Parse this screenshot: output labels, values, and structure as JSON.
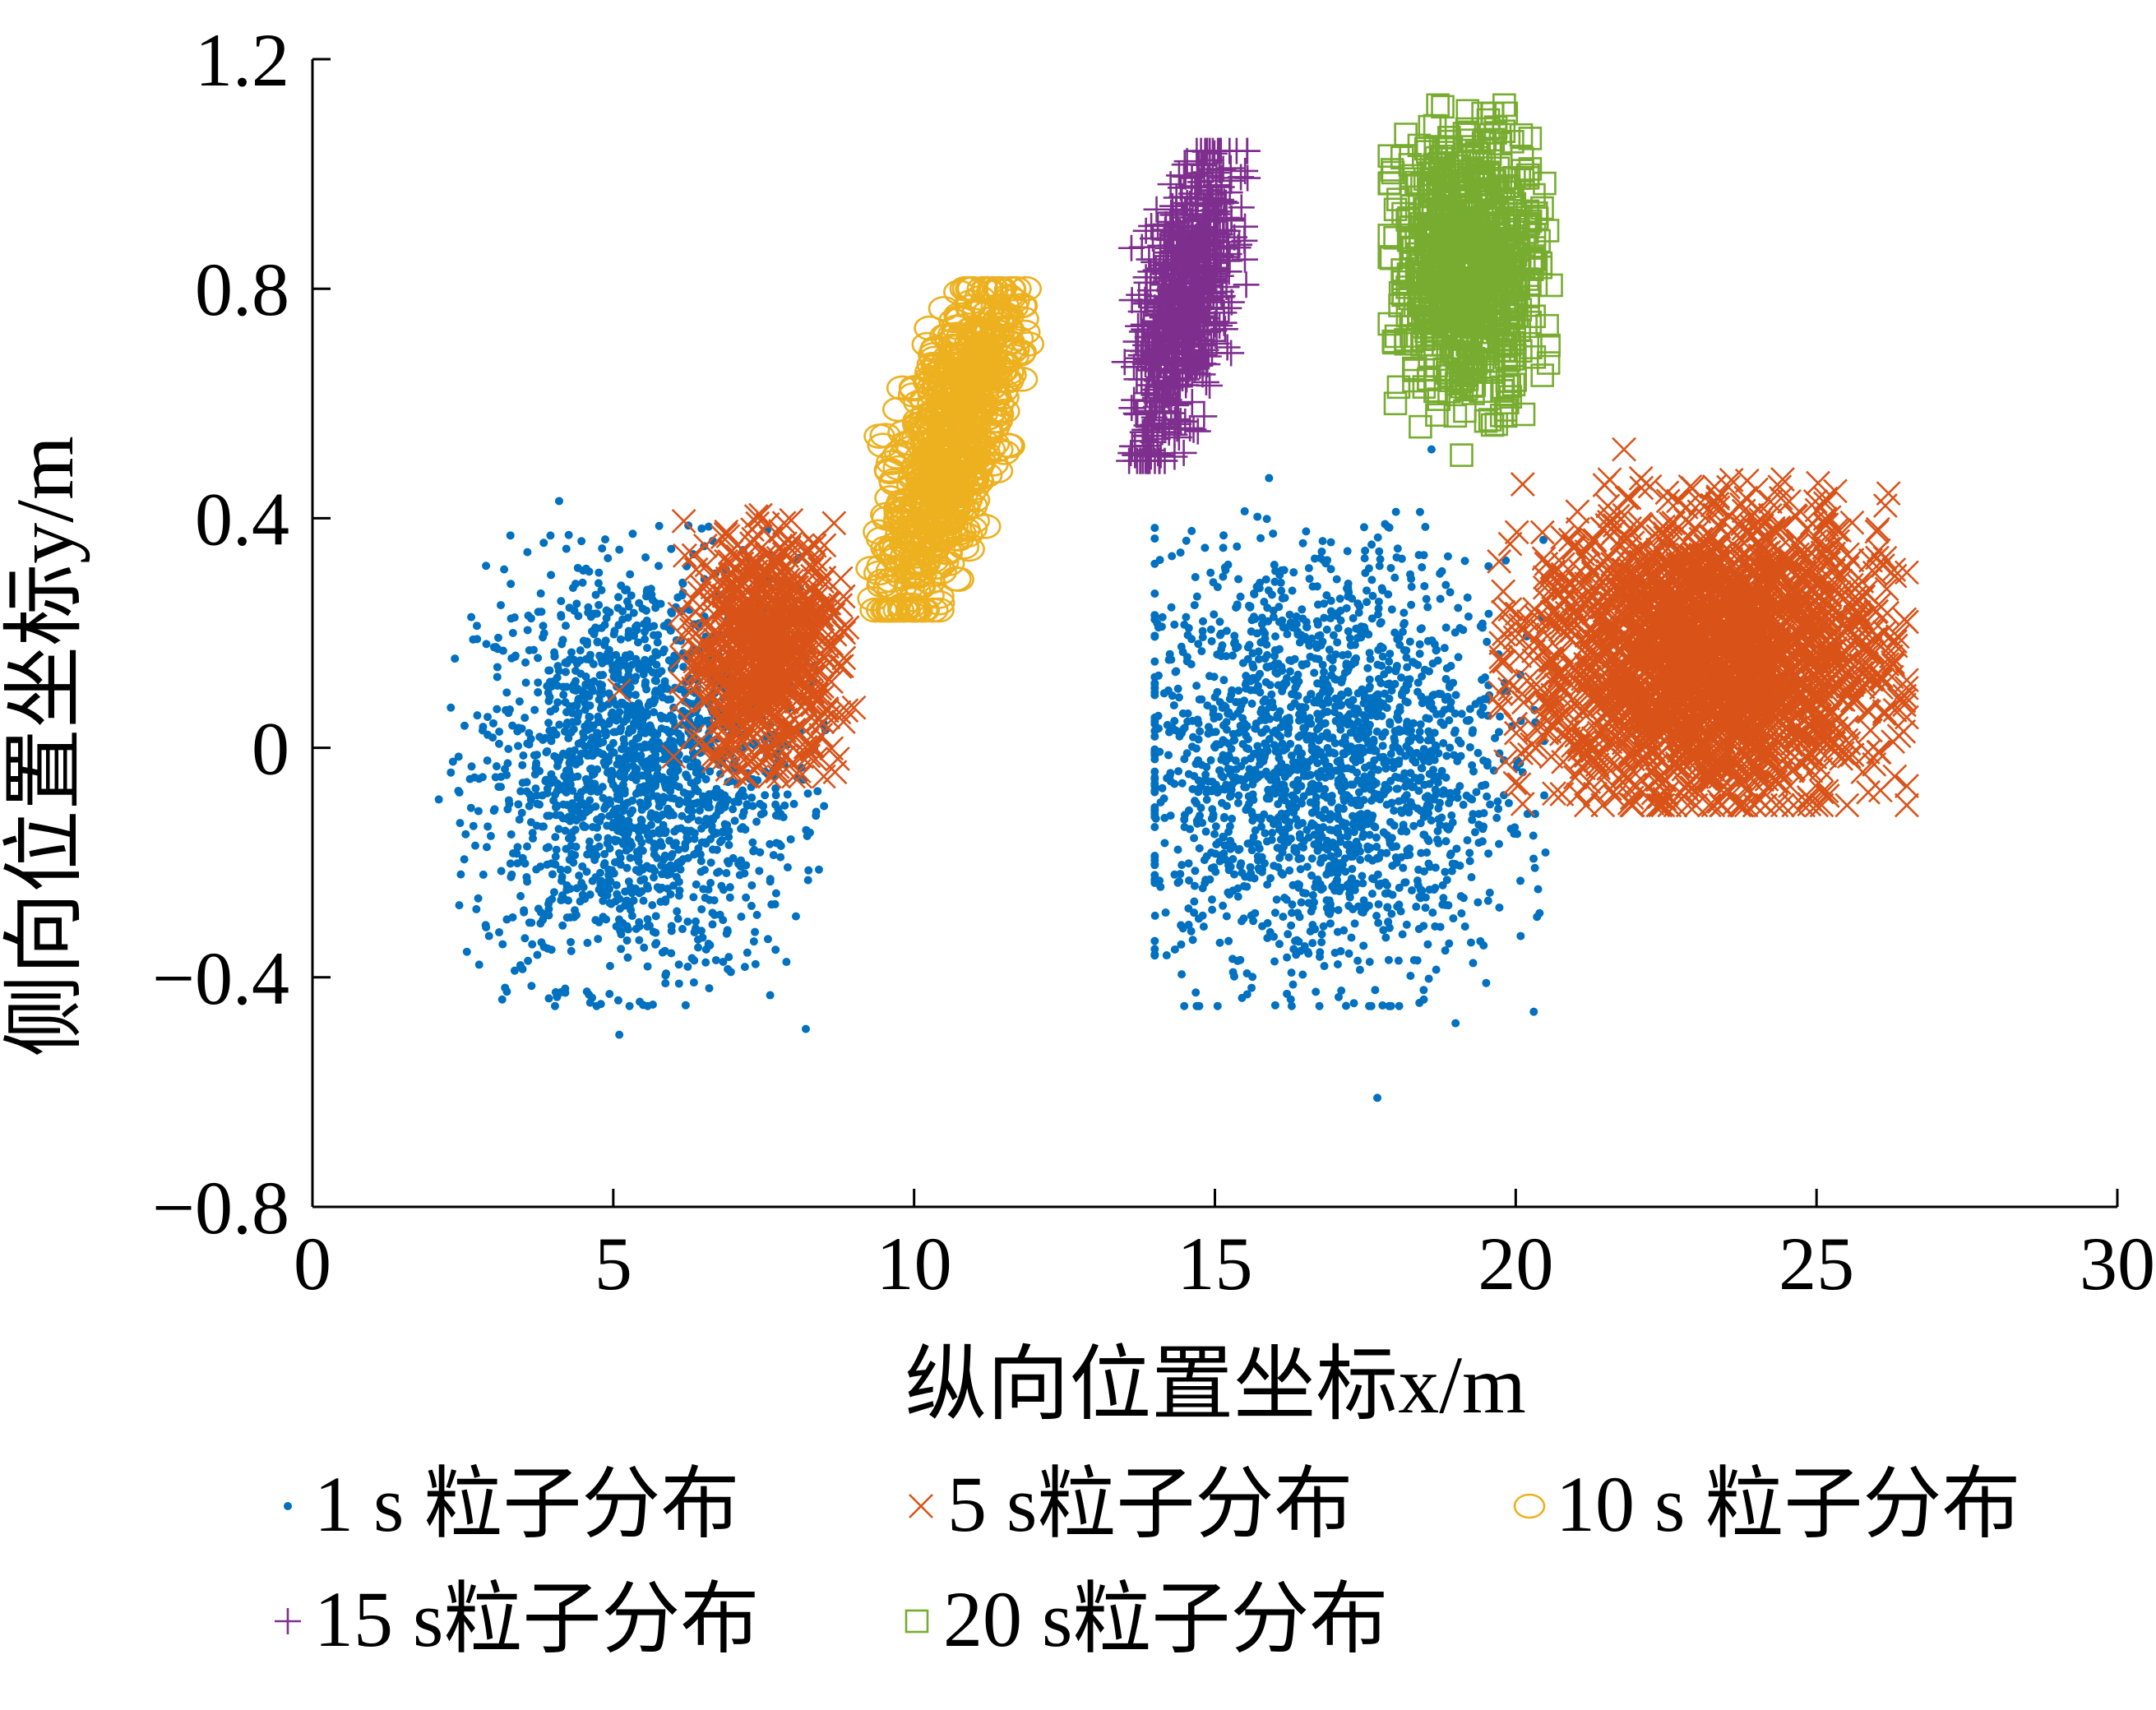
{
  "chart_data": {
    "type": "scatter",
    "xlabel": "纵向位置坐标x/m",
    "ylabel": "侧向位置坐标y/m",
    "xlim": [
      0,
      30
    ],
    "ylim": [
      -0.8,
      1.2
    ],
    "xticks": [
      "0",
      "5",
      "10",
      "15",
      "20",
      "25",
      "30"
    ],
    "yticks": [
      "1.2",
      "0.8",
      "0.4",
      "0",
      "−0.4",
      "−0.8"
    ],
    "xtick_values": [
      0,
      5,
      10,
      15,
      20,
      25,
      30
    ],
    "ytick_values": [
      1.2,
      0.8,
      0.4,
      0,
      -0.4,
      -0.8
    ],
    "grid": false,
    "legend_position": "bottom",
    "series": [
      {
        "name": "1 s 粒子分布",
        "marker": "dot",
        "color": "#0070C0",
        "clusters": [
          {
            "center": [
              5.4,
              -0.04
            ],
            "x_range": [
              2.3,
              8.6
            ],
            "y_range": [
              -0.45,
              0.42
            ],
            "count": 1800
          },
          {
            "center": [
              16.8,
              -0.03
            ],
            "x_range": [
              14.0,
              21.4
            ],
            "y_range": [
              -0.45,
              0.44
            ],
            "count": 2000
          }
        ],
        "outliers": [
          [
            5.1,
            -0.5
          ],
          [
            8.2,
            -0.49
          ],
          [
            17.7,
            -0.61
          ],
          [
            2.1,
            -0.09
          ],
          [
            2.3,
            0.07
          ],
          [
            4.1,
            0.43
          ],
          [
            20.3,
            -0.46
          ],
          [
            19.0,
            -0.48
          ],
          [
            15.9,
            0.47
          ],
          [
            18.6,
            0.52
          ]
        ]
      },
      {
        "name": "5 s粒子分布",
        "marker": "x",
        "color": "#D95319",
        "clusters": [
          {
            "center": [
              7.5,
              0.17
            ],
            "x_range": [
              6.0,
              9.0
            ],
            "y_range": [
              -0.05,
              0.45
            ],
            "count": 700
          },
          {
            "center": [
              23.2,
              0.16
            ],
            "x_range": [
              19.5,
              26.5
            ],
            "y_range": [
              -0.1,
              0.52
            ],
            "count": 2200
          }
        ],
        "outliers": [
          [
            5.1,
            0.1
          ],
          [
            7.2,
            -0.05
          ],
          [
            26.3,
            -0.05
          ],
          [
            25.0,
            -0.1
          ],
          [
            21.8,
            0.52
          ],
          [
            24.0,
            0.45
          ],
          [
            6.5,
            0.0
          ],
          [
            9.0,
            0.07
          ]
        ]
      },
      {
        "name": "10 s 粒子分布",
        "marker": "circle",
        "color": "#EDB120",
        "clusters": [
          {
            "center": [
              10.6,
              0.53
            ],
            "x_range": [
              9.2,
              11.9
            ],
            "y_range": [
              0.24,
              0.8
            ],
            "count": 700,
            "tilt": 0.2
          }
        ],
        "outliers": [
          [
            10.0,
            0.24
          ],
          [
            10.1,
            0.28
          ]
        ]
      },
      {
        "name": "15 s粒子分布",
        "marker": "plus",
        "color": "#7E2F8E",
        "clusters": [
          {
            "center": [
              14.5,
              0.78
            ],
            "x_range": [
              13.5,
              15.6
            ],
            "y_range": [
              0.5,
              1.04
            ],
            "count": 700,
            "tilt": 0.18
          }
        ],
        "outliers": [
          [
            13.8,
            0.55
          ],
          [
            14.1,
            0.51
          ]
        ]
      },
      {
        "name": "20 s粒子分布",
        "marker": "square",
        "color": "#77AC30",
        "clusters": [
          {
            "center": [
              19.2,
              0.84
            ],
            "x_range": [
              17.9,
              20.7
            ],
            "y_range": [
              0.55,
              1.12
            ],
            "count": 800
          }
        ],
        "outliers": [
          [
            19.1,
            0.51
          ],
          [
            18.0,
            0.6
          ],
          [
            19.2,
            1.11
          ],
          [
            20.3,
            0.85
          ]
        ]
      }
    ]
  }
}
